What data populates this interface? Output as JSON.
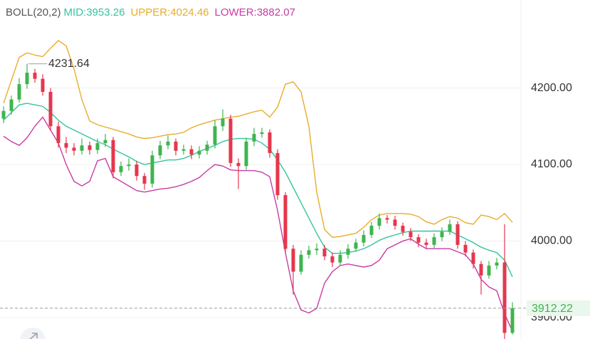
{
  "chart_data": {
    "type": "candlestick",
    "title": "BOLL(20,2)",
    "candles": {
      "open": [
        4160,
        4170,
        4185,
        4205,
        4220,
        4212,
        4195,
        4150,
        4128,
        4122,
        4118,
        4125,
        4119,
        4128,
        4132,
        4090,
        4098,
        4100,
        4085,
        4075,
        4112,
        4125,
        4130,
        4118,
        4120,
        4113,
        4118,
        4126,
        4150,
        4160,
        4102,
        4098,
        4130,
        4140,
        4142,
        4115,
        4060,
        3990,
        3960,
        3982,
        3988,
        3990,
        3980,
        3972,
        3982,
        3990,
        3998,
        4008,
        4020,
        4030,
        4028,
        4020,
        4012,
        4005,
        3998,
        3995,
        4005,
        4012,
        4022,
        3995,
        3985,
        3970,
        3955,
        3968,
        3972,
        3880
      ],
      "high": [
        4176,
        4190,
        4213,
        4231.64,
        4225,
        4218,
        4200,
        4156,
        4136,
        4128,
        4134,
        4130,
        4134,
        4140,
        4136,
        4104,
        4108,
        4105,
        4089,
        4118,
        4131,
        4138,
        4134,
        4126,
        4125,
        4124,
        4131,
        4158,
        4172,
        4165,
        4108,
        4135,
        4148,
        4148,
        4146,
        4120,
        4064,
        3995,
        3988,
        3994,
        3997,
        3995,
        3985,
        3988,
        3996,
        4003,
        4014,
        4025,
        4036,
        4034,
        4033,
        4024,
        4017,
        4009,
        4003,
        4010,
        4018,
        4028,
        4026,
        4000,
        3989,
        3974,
        3974,
        3978,
        4022,
        3920
      ],
      "low": [
        4154,
        4165,
        4181,
        4199,
        4207,
        4190,
        4144,
        4122,
        4115,
        4112,
        4113,
        4113,
        4114,
        4123,
        4082,
        4085,
        4092,
        4079,
        4067,
        4070,
        4107,
        4120,
        4112,
        4113,
        4107,
        4108,
        4113,
        4121,
        4144,
        4097,
        4068,
        4093,
        4124,
        4135,
        4109,
        4054,
        3985,
        3930,
        3956,
        3977,
        3982,
        3975,
        3966,
        3968,
        3977,
        3986,
        3993,
        4004,
        4015,
        4023,
        4015,
        4007,
        4000,
        3992,
        3990,
        3991,
        4000,
        4008,
        3990,
        3980,
        3964,
        3930,
        3951,
        3963,
        3866,
        3878
      ],
      "close": [
        4170,
        4185,
        4205,
        4220,
        4212,
        4195,
        4150,
        4128,
        4122,
        4118,
        4125,
        4119,
        4128,
        4132,
        4090,
        4098,
        4100,
        4085,
        4075,
        4112,
        4125,
        4130,
        4118,
        4120,
        4113,
        4118,
        4126,
        4150,
        4160,
        4102,
        4098,
        4130,
        4140,
        4142,
        4115,
        4060,
        3990,
        3960,
        3982,
        3988,
        3990,
        3980,
        3972,
        3982,
        3990,
        3998,
        4008,
        4020,
        4030,
        4028,
        4020,
        4012,
        4005,
        3998,
        3995,
        4005,
        4012,
        4022,
        3995,
        3985,
        3970,
        3955,
        3968,
        3972,
        3880,
        3912.22
      ]
    },
    "up_color": "#3fb44f",
    "down_color": "#e5374d",
    "series": [
      {
        "name": "MID:3953.26",
        "color": "#35c49c",
        "values": [
          4158,
          4168,
          4178,
          4180,
          4178,
          4176,
          4168,
          4158,
          4150,
          4145,
          4140,
          4135,
          4130,
          4126,
          4120,
          4115,
          4110,
          4104,
          4100,
          4102,
          4104,
          4106,
          4106,
          4108,
          4112,
          4117,
          4121,
          4125,
          4130,
          4133,
          4134,
          4134,
          4133,
          4128,
          4120,
          4106,
          4090,
          4070,
          4050,
          4030,
          4010,
          3992,
          3984,
          3984,
          3985,
          3987,
          3990,
          3995,
          4001,
          4005,
          4008,
          4011,
          4013,
          4013,
          4013,
          4013,
          4013,
          4013,
          4008,
          4003,
          3998,
          3992,
          3988,
          3985,
          3975,
          3953.26
        ]
      },
      {
        "name": "UPPER:4024.46",
        "color": "#e8ac2c",
        "values": [
          4180,
          4210,
          4240,
          4246,
          4243,
          4241,
          4252,
          4262,
          4255,
          4225,
          4185,
          4157,
          4152,
          4149,
          4146,
          4143,
          4140,
          4136,
          4134,
          4135,
          4137,
          4139,
          4140,
          4142,
          4148,
          4152,
          4155,
          4158,
          4160,
          4162,
          4163,
          4166,
          4169,
          4171,
          4162,
          4175,
          4205,
          4208,
          4195,
          4150,
          4064,
          4015,
          4005,
          4006,
          4008,
          4010,
          4018,
          4028,
          4034,
          4036,
          4036,
          4036,
          4035,
          4032,
          4025,
          4022,
          4028,
          4032,
          4030,
          4024,
          4022,
          4034,
          4032,
          4028,
          4036,
          4024.46
        ]
      },
      {
        "name": "LOWER:3882.07",
        "color": "#c83ca4",
        "values": [
          4137,
          4130,
          4125,
          4135,
          4150,
          4162,
          4145,
          4128,
          4100,
          4078,
          4072,
          4078,
          4105,
          4108,
          4084,
          4078,
          4072,
          4066,
          4064,
          4066,
          4068,
          4069,
          4071,
          4074,
          4078,
          4083,
          4092,
          4100,
          4098,
          4093,
          4092,
          4092,
          4092,
          4090,
          4084,
          4040,
          3985,
          3935,
          3910,
          3906,
          3912,
          3945,
          3960,
          3968,
          3970,
          3968,
          3966,
          3968,
          3975,
          3990,
          3995,
          4000,
          4003,
          3996,
          3990,
          3990,
          3990,
          3990,
          3986,
          3982,
          3970,
          3950,
          3940,
          3935,
          3905,
          3882.07
        ]
      }
    ],
    "ylim": [
      3872,
      4315
    ],
    "yticks": [
      {
        "value": 3900,
        "label": "3900.00"
      },
      {
        "value": 4000,
        "label": "4000.00"
      },
      {
        "value": 4100,
        "label": "4100.00"
      },
      {
        "value": 4200,
        "label": "4200.00"
      }
    ],
    "grid": true,
    "high_annotation": 4231.64,
    "last_price": 3912.22
  }
}
